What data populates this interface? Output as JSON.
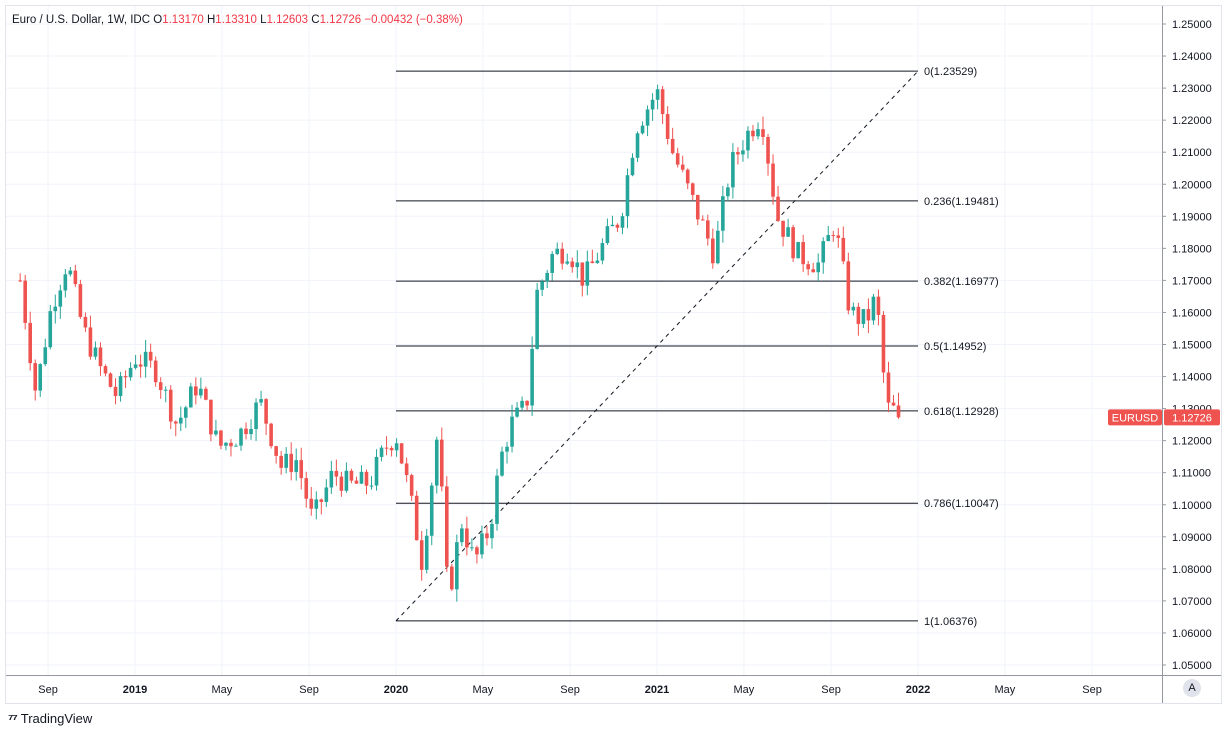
{
  "legend": {
    "symbol": "Euro / U.S. Dollar, 1W, IDC",
    "open_label": "O",
    "open": "1.13170",
    "high_label": "H",
    "high": "1.13310",
    "low_label": "L",
    "low": "1.12603",
    "close_label": "C",
    "close": "1.12726",
    "change": "−0.00432 (−0.38%)"
  },
  "price_tag": {
    "symbol": "EURUSD",
    "price": "1.12726"
  },
  "auto_button": "A",
  "brand": "TradingView",
  "colors": {
    "up": "#26a69a",
    "down": "#ef5350",
    "grid": "#f0f3fa",
    "line": "#131722",
    "tag": "#ef5350"
  },
  "chart_data": {
    "type": "candlestick",
    "title": "Euro / U.S. Dollar, 1W, IDC",
    "y_axis": {
      "min": 1.045,
      "max": 1.255,
      "ticks": [
        "1.05000",
        "1.06000",
        "1.07000",
        "1.08000",
        "1.09000",
        "1.10000",
        "1.11000",
        "1.12000",
        "1.13000",
        "1.14000",
        "1.15000",
        "1.16000",
        "1.17000",
        "1.18000",
        "1.19000",
        "1.20000",
        "1.21000",
        "1.22000",
        "1.23000",
        "1.24000",
        "1.25000"
      ]
    },
    "x_axis": {
      "ticks": [
        {
          "label": "Sep",
          "t": 2018.667
        },
        {
          "label": "2019",
          "t": 2019.0
        },
        {
          "label": "May",
          "t": 2019.333
        },
        {
          "label": "Sep",
          "t": 2019.667
        },
        {
          "label": "2020",
          "t": 2020.0
        },
        {
          "label": "May",
          "t": 2020.333
        },
        {
          "label": "Sep",
          "t": 2020.667
        },
        {
          "label": "2021",
          "t": 2021.0
        },
        {
          "label": "May",
          "t": 2021.333
        },
        {
          "label": "Sep",
          "t": 2021.667
        },
        {
          "label": "2022",
          "t": 2022.0
        },
        {
          "label": "May",
          "t": 2022.333
        },
        {
          "label": "Sep",
          "t": 2022.667
        }
      ],
      "bold": [
        "2019",
        "2020",
        "2021",
        "2022"
      ]
    },
    "fibonacci": {
      "start": {
        "t": 2020.0,
        "price": 1.06376
      },
      "end": {
        "t": 2022.0,
        "price": 1.23529
      },
      "levels": [
        {
          "label": "0(1.23529)",
          "price": 1.23529
        },
        {
          "label": "0.236(1.19481)",
          "price": 1.19481
        },
        {
          "label": "0.382(1.16977)",
          "price": 1.16977
        },
        {
          "label": "0.5(1.14952)",
          "price": 1.14952
        },
        {
          "label": "0.618(1.12928)",
          "price": 1.12928
        },
        {
          "label": "0.786(1.10047)",
          "price": 1.10047
        },
        {
          "label": "1(1.06376)",
          "price": 1.06376
        }
      ]
    },
    "series_keypoints": [
      [
        2018.56,
        1.17
      ],
      [
        2018.62,
        1.135
      ],
      [
        2018.68,
        1.162
      ],
      [
        2018.74,
        1.176
      ],
      [
        2018.8,
        1.155
      ],
      [
        2018.87,
        1.142
      ],
      [
        2018.93,
        1.134
      ],
      [
        2019.0,
        1.146
      ],
      [
        2019.08,
        1.142
      ],
      [
        2019.16,
        1.125
      ],
      [
        2019.24,
        1.138
      ],
      [
        2019.32,
        1.118
      ],
      [
        2019.4,
        1.122
      ],
      [
        2019.48,
        1.132
      ],
      [
        2019.56,
        1.112
      ],
      [
        2019.62,
        1.114
      ],
      [
        2019.68,
        1.095
      ],
      [
        2019.76,
        1.11
      ],
      [
        2019.82,
        1.106
      ],
      [
        2019.9,
        1.107
      ],
      [
        2019.96,
        1.118
      ],
      [
        2020.0,
        1.122
      ],
      [
        2020.05,
        1.104
      ],
      [
        2020.1,
        1.082
      ],
      [
        2020.16,
        1.123
      ],
      [
        2020.2,
        1.07
      ],
      [
        2020.25,
        1.095
      ],
      [
        2020.3,
        1.082
      ],
      [
        2020.36,
        1.093
      ],
      [
        2020.4,
        1.114
      ],
      [
        2020.44,
        1.125
      ],
      [
        2020.5,
        1.131
      ],
      [
        2020.54,
        1.166
      ],
      [
        2020.6,
        1.178
      ],
      [
        2020.66,
        1.18
      ],
      [
        2020.72,
        1.17
      ],
      [
        2020.8,
        1.182
      ],
      [
        2020.86,
        1.19
      ],
      [
        2020.92,
        1.218
      ],
      [
        2021.0,
        1.229
      ],
      [
        2021.06,
        1.21
      ],
      [
        2021.14,
        1.194
      ],
      [
        2021.22,
        1.178
      ],
      [
        2021.28,
        1.205
      ],
      [
        2021.34,
        1.215
      ],
      [
        2021.4,
        1.222
      ],
      [
        2021.46,
        1.19
      ],
      [
        2021.54,
        1.178
      ],
      [
        2021.62,
        1.175
      ],
      [
        2021.68,
        1.188
      ],
      [
        2021.74,
        1.16
      ],
      [
        2021.8,
        1.157
      ],
      [
        2021.84,
        1.165
      ],
      [
        2021.88,
        1.13
      ],
      [
        2021.93,
        1.129
      ]
    ],
    "last_close": 1.12726
  }
}
